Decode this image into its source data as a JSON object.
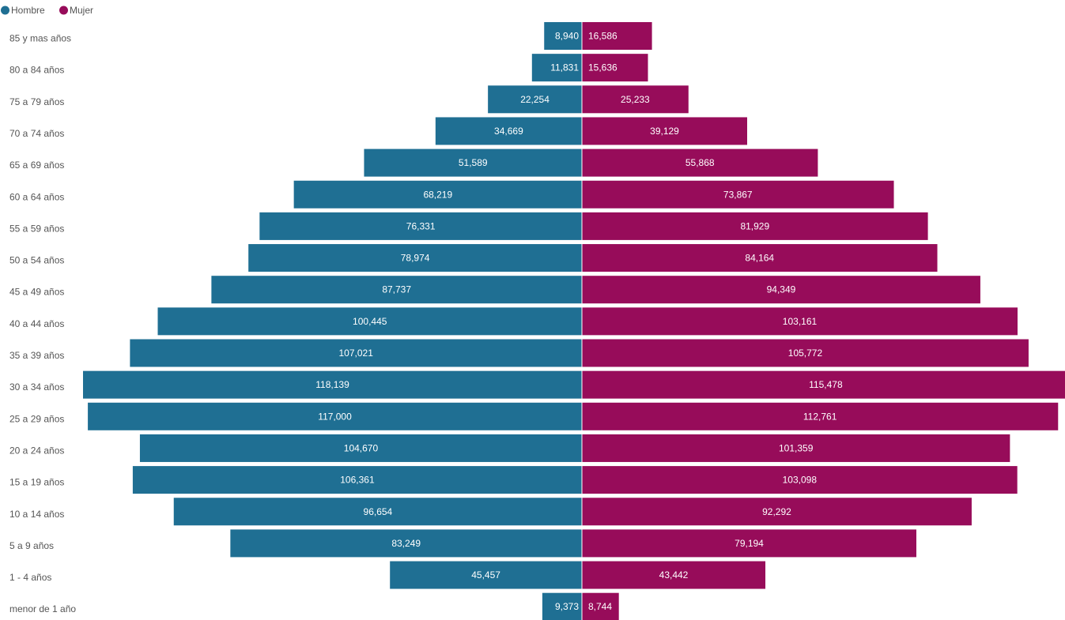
{
  "legend": {
    "items": [
      {
        "label": "Hombre",
        "color": "#1f6f93"
      },
      {
        "label": "Mujer",
        "color": "#970c5a"
      }
    ],
    "position": "top-left"
  },
  "chart_data": {
    "type": "bar",
    "orientation": "horizontal",
    "layout": "population-pyramid",
    "title": "",
    "xlabel": "",
    "ylabel": "",
    "grid": false,
    "categories": [
      "85 y mas años",
      "80 a 84 años",
      "75 a 79 años",
      "70 a 74 años",
      "65 a 69 años",
      "60 a 64 años",
      "55 a 59 años",
      "50 a 54 años",
      "45 a 49 años",
      "40 a 44 años",
      "35 a 39 años",
      "30 a 34 años",
      "25 a 29 años",
      "20 a 24 años",
      "15 a 19 años",
      "10 a 14 años",
      "5 a 9 años",
      "1 - 4 años",
      "menor de 1 año"
    ],
    "series": [
      {
        "name": "Hombre",
        "color": "#1f6f93",
        "values": [
          8940,
          11831,
          22254,
          34669,
          51589,
          68219,
          76331,
          78974,
          87737,
          100445,
          107021,
          118139,
          117000,
          104670,
          106361,
          96654,
          83249,
          45457,
          9373
        ],
        "labels": [
          "8,940",
          "11,831",
          "22,254",
          "34,669",
          "51,589",
          "68,219",
          "76,331",
          "78,974",
          "87,737",
          "100,445",
          "107,021",
          "118,139",
          "117,000",
          "104,670",
          "106,361",
          "96,654",
          "83,249",
          "45,457",
          "9,373"
        ]
      },
      {
        "name": "Mujer",
        "color": "#970c5a",
        "values": [
          16586,
          15636,
          25233,
          39129,
          55868,
          73867,
          81929,
          84164,
          94349,
          103161,
          105772,
          115478,
          112761,
          101359,
          103098,
          92292,
          79194,
          43442,
          8744
        ],
        "labels": [
          "16,586",
          "15,636",
          "25,233",
          "39,129",
          "55,868",
          "73,867",
          "81,929",
          "84,164",
          "94,349",
          "103,161",
          "105,772",
          "115,478",
          "112,761",
          "101,359",
          "103,098",
          "92,292",
          "79,194",
          "43,442",
          "8,744"
        ]
      }
    ]
  }
}
